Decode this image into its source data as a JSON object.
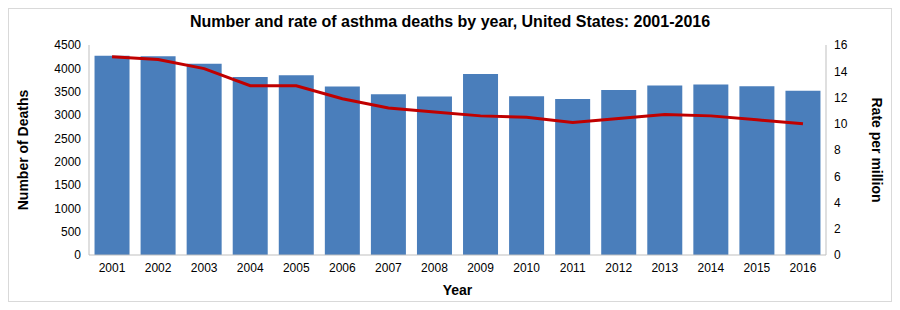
{
  "chart_data": {
    "type": "bar",
    "title": "Number and rate of asthma deaths by year, United States:  2001-2016",
    "xlabel": "Year",
    "ylabel": "Number of Deaths",
    "y2label": "Rate per million",
    "categories": [
      "2001",
      "2002",
      "2003",
      "2004",
      "2005",
      "2006",
      "2007",
      "2008",
      "2009",
      "2010",
      "2011",
      "2012",
      "2013",
      "2014",
      "2015",
      "2016"
    ],
    "series": [
      {
        "name": "Number of Deaths",
        "type": "bar",
        "color": "#4a7ebb",
        "values": [
          4269,
          4261,
          4099,
          3816,
          3850,
          3613,
          3447,
          3397,
          3880,
          3404,
          3345,
          3538,
          3630,
          3651,
          3615,
          3518
        ]
      },
      {
        "name": "Rate per million",
        "type": "line",
        "axis": "y2",
        "color": "#c00000",
        "marker": "none",
        "values": [
          15.1,
          14.9,
          14.2,
          12.9,
          12.9,
          11.9,
          11.2,
          10.9,
          10.6,
          10.5,
          10.1,
          10.4,
          10.7,
          10.6,
          10.3,
          10.0
        ]
      }
    ],
    "ylim": [
      0,
      4500
    ],
    "yticks": [
      0,
      500,
      1000,
      1500,
      2000,
      2500,
      3000,
      3500,
      4000,
      4500
    ],
    "y2lim": [
      0,
      16
    ],
    "y2ticks": [
      0,
      2,
      4,
      6,
      8,
      10,
      12,
      14,
      16
    ],
    "grid": false
  }
}
